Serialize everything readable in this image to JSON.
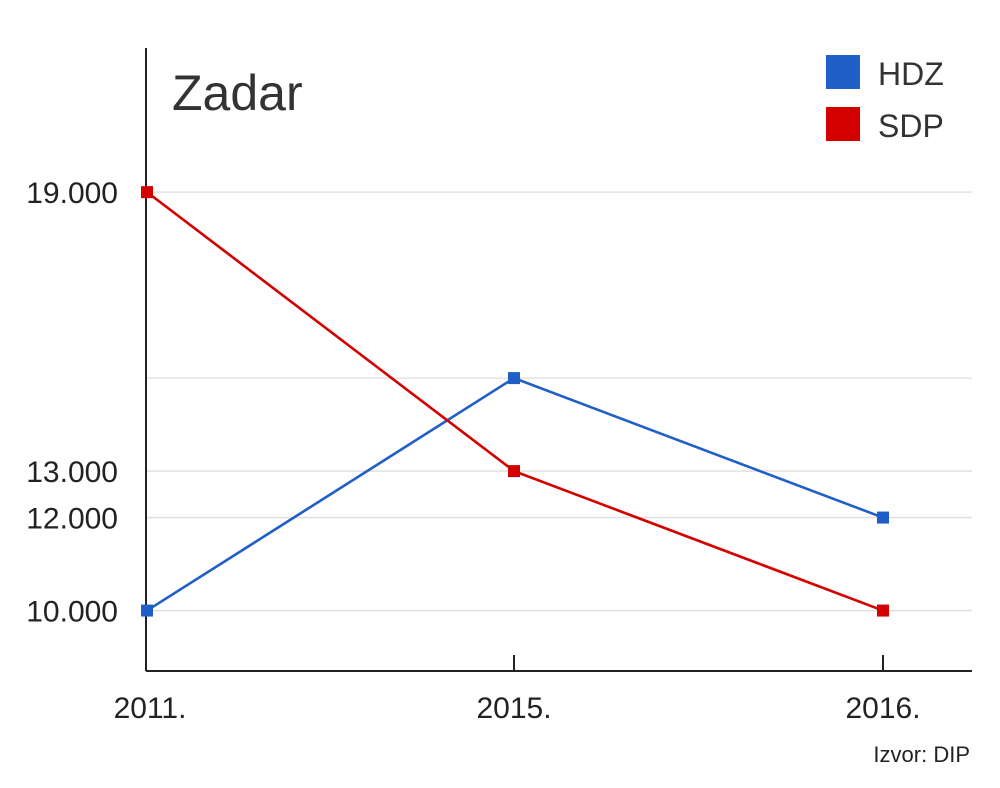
{
  "chart_data": {
    "type": "line",
    "title": "Zadar",
    "categories": [
      "2011.",
      "2015.",
      "2016."
    ],
    "series": [
      {
        "name": "HDZ",
        "color": "#1f5fc7",
        "values": [
          10000,
          15000,
          12000
        ]
      },
      {
        "name": "SDP",
        "color": "#d40000",
        "values": [
          19000,
          13000,
          10000
        ]
      }
    ],
    "yticks": [
      10000,
      12000,
      13000,
      19000
    ],
    "ytick_labels": [
      "10.000",
      "12.000",
      "13.000",
      "19.000"
    ],
    "ylim": [
      8700,
      22100
    ],
    "grid": true,
    "legend_position": "top-right",
    "source": "Izvor: DIP"
  }
}
